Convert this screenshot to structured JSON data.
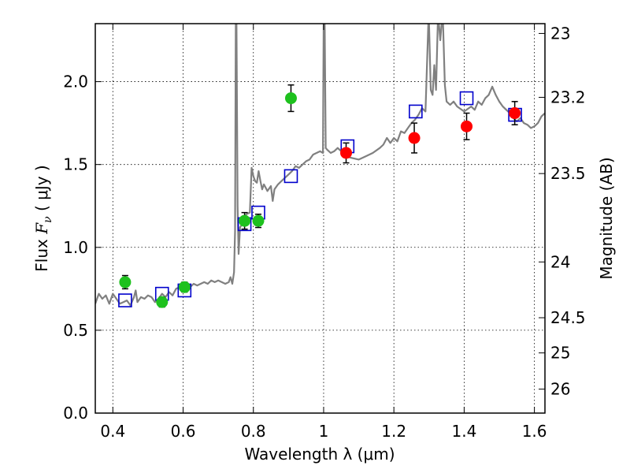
{
  "chart_data": {
    "type": "scatter",
    "xlabel": "Wavelength  λ (μm)",
    "ylabel": "Flux  F_ν  ( μJy )",
    "ylabel_parts": {
      "pre": "Flux  ",
      "sym": "F",
      "sub": "ν",
      "post": "  ( μJy )"
    },
    "y2label": "Magnitude (AB)",
    "xlim": [
      0.35,
      1.63
    ],
    "ylim": [
      0.0,
      2.35
    ],
    "grid": true,
    "x_ticks": [
      0.4,
      0.6,
      0.8,
      1.0,
      1.2,
      1.4,
      1.6
    ],
    "x_tick_labels": [
      "0.4",
      "0.6",
      "0.8",
      "1",
      "1.2",
      "1.4",
      "1.6"
    ],
    "y_ticks": [
      0.0,
      0.5,
      1.0,
      1.5,
      2.0
    ],
    "y_tick_labels": [
      "0.0",
      "0.5",
      "1.0",
      "1.5",
      "2.0"
    ],
    "y2_ticks": [
      23,
      23.2,
      23.5,
      24,
      24.5,
      25,
      26
    ],
    "y2_tick_labels": [
      "23",
      "23.2",
      "23.5",
      "24",
      "24.5",
      "25",
      "26"
    ],
    "colors": {
      "model": "#808080",
      "green_points": "#1ec11e",
      "red_points": "#ff0000",
      "model_photometry": "#0000cc",
      "errorbar": "#000000"
    },
    "series": [
      {
        "name": "model spectrum",
        "kind": "line",
        "points": [
          [
            0.35,
            0.66
          ],
          [
            0.36,
            0.72
          ],
          [
            0.37,
            0.69
          ],
          [
            0.38,
            0.71
          ],
          [
            0.39,
            0.66
          ],
          [
            0.4,
            0.72
          ],
          [
            0.41,
            0.69
          ],
          [
            0.42,
            0.66
          ],
          [
            0.43,
            0.67
          ],
          [
            0.44,
            0.68
          ],
          [
            0.45,
            0.65
          ],
          [
            0.46,
            0.7
          ],
          [
            0.465,
            0.74
          ],
          [
            0.47,
            0.67
          ],
          [
            0.48,
            0.7
          ],
          [
            0.49,
            0.69
          ],
          [
            0.5,
            0.71
          ],
          [
            0.51,
            0.7
          ],
          [
            0.52,
            0.67
          ],
          [
            0.53,
            0.69
          ],
          [
            0.54,
            0.72
          ],
          [
            0.55,
            0.7
          ],
          [
            0.56,
            0.73
          ],
          [
            0.57,
            0.71
          ],
          [
            0.58,
            0.75
          ],
          [
            0.59,
            0.76
          ],
          [
            0.6,
            0.75
          ],
          [
            0.61,
            0.77
          ],
          [
            0.62,
            0.76
          ],
          [
            0.63,
            0.78
          ],
          [
            0.64,
            0.77
          ],
          [
            0.65,
            0.78
          ],
          [
            0.66,
            0.79
          ],
          [
            0.67,
            0.78
          ],
          [
            0.68,
            0.8
          ],
          [
            0.69,
            0.79
          ],
          [
            0.7,
            0.8
          ],
          [
            0.71,
            0.79
          ],
          [
            0.72,
            0.78
          ],
          [
            0.73,
            0.79
          ],
          [
            0.735,
            0.82
          ],
          [
            0.74,
            0.78
          ],
          [
            0.745,
            0.85
          ],
          [
            0.748,
            1.1
          ],
          [
            0.75,
            2.35
          ],
          [
            0.752,
            2.35
          ],
          [
            0.755,
            1.25
          ],
          [
            0.758,
            0.96
          ],
          [
            0.762,
            1.12
          ],
          [
            0.77,
            1.15
          ],
          [
            0.78,
            1.2
          ],
          [
            0.79,
            1.21
          ],
          [
            0.795,
            1.48
          ],
          [
            0.8,
            1.43
          ],
          [
            0.805,
            1.4
          ],
          [
            0.81,
            1.39
          ],
          [
            0.815,
            1.46
          ],
          [
            0.82,
            1.4
          ],
          [
            0.825,
            1.35
          ],
          [
            0.83,
            1.38
          ],
          [
            0.84,
            1.34
          ],
          [
            0.85,
            1.37
          ],
          [
            0.855,
            1.28
          ],
          [
            0.86,
            1.35
          ],
          [
            0.87,
            1.38
          ],
          [
            0.88,
            1.4
          ],
          [
            0.89,
            1.42
          ],
          [
            0.9,
            1.44
          ],
          [
            0.91,
            1.46
          ],
          [
            0.92,
            1.49
          ],
          [
            0.93,
            1.48
          ],
          [
            0.94,
            1.5
          ],
          [
            0.95,
            1.52
          ],
          [
            0.96,
            1.53
          ],
          [
            0.97,
            1.56
          ],
          [
            0.98,
            1.57
          ],
          [
            0.99,
            1.58
          ],
          [
            0.998,
            1.57
          ],
          [
            1.0,
            2.35
          ],
          [
            1.003,
            2.35
          ],
          [
            1.006,
            1.6
          ],
          [
            1.01,
            1.59
          ],
          [
            1.02,
            1.57
          ],
          [
            1.03,
            1.58
          ],
          [
            1.04,
            1.6
          ],
          [
            1.05,
            1.58
          ],
          [
            1.06,
            1.55
          ],
          [
            1.08,
            1.54
          ],
          [
            1.1,
            1.53
          ],
          [
            1.12,
            1.55
          ],
          [
            1.14,
            1.57
          ],
          [
            1.16,
            1.6
          ],
          [
            1.17,
            1.62
          ],
          [
            1.18,
            1.66
          ],
          [
            1.19,
            1.63
          ],
          [
            1.2,
            1.66
          ],
          [
            1.21,
            1.64
          ],
          [
            1.22,
            1.7
          ],
          [
            1.23,
            1.69
          ],
          [
            1.24,
            1.72
          ],
          [
            1.25,
            1.75
          ],
          [
            1.26,
            1.77
          ],
          [
            1.27,
            1.8
          ],
          [
            1.28,
            1.84
          ],
          [
            1.29,
            1.82
          ],
          [
            1.298,
            2.35
          ],
          [
            1.3,
            2.35
          ],
          [
            1.305,
            1.95
          ],
          [
            1.31,
            1.92
          ],
          [
            1.315,
            2.1
          ],
          [
            1.32,
            1.95
          ],
          [
            1.325,
            2.35
          ],
          [
            1.328,
            2.35
          ],
          [
            1.332,
            2.25
          ],
          [
            1.336,
            2.35
          ],
          [
            1.34,
            2.35
          ],
          [
            1.345,
            1.98
          ],
          [
            1.35,
            1.88
          ],
          [
            1.36,
            1.86
          ],
          [
            1.37,
            1.88
          ],
          [
            1.38,
            1.85
          ],
          [
            1.4,
            1.82
          ],
          [
            1.42,
            1.85
          ],
          [
            1.43,
            1.83
          ],
          [
            1.44,
            1.88
          ],
          [
            1.45,
            1.86
          ],
          [
            1.46,
            1.9
          ],
          [
            1.47,
            1.92
          ],
          [
            1.48,
            1.97
          ],
          [
            1.49,
            1.92
          ],
          [
            1.5,
            1.88
          ],
          [
            1.51,
            1.85
          ],
          [
            1.52,
            1.83
          ],
          [
            1.53,
            1.81
          ],
          [
            1.54,
            1.78
          ],
          [
            1.55,
            1.76
          ],
          [
            1.56,
            1.78
          ],
          [
            1.57,
            1.75
          ],
          [
            1.58,
            1.74
          ],
          [
            1.59,
            1.72
          ],
          [
            1.6,
            1.73
          ],
          [
            1.61,
            1.75
          ],
          [
            1.62,
            1.79
          ],
          [
            1.63,
            1.81
          ]
        ]
      },
      {
        "name": "observed (green)",
        "kind": "points",
        "marker": "circle",
        "points": [
          {
            "x": 0.435,
            "y": 0.79,
            "err": 0.04
          },
          {
            "x": 0.54,
            "y": 0.67,
            "err": 0.03
          },
          {
            "x": 0.604,
            "y": 0.76,
            "err": 0.03
          },
          {
            "x": 0.775,
            "y": 1.16,
            "err": 0.05
          },
          {
            "x": 0.814,
            "y": 1.16,
            "err": 0.04
          },
          {
            "x": 0.907,
            "y": 1.9,
            "err": 0.08
          }
        ]
      },
      {
        "name": "observed (red)",
        "kind": "points",
        "marker": "circle",
        "points": [
          {
            "x": 1.064,
            "y": 1.57,
            "err": 0.06
          },
          {
            "x": 1.258,
            "y": 1.66,
            "err": 0.09
          },
          {
            "x": 1.407,
            "y": 1.73,
            "err": 0.08
          },
          {
            "x": 1.544,
            "y": 1.81,
            "err": 0.07
          }
        ]
      },
      {
        "name": "model photometry",
        "kind": "points",
        "marker": "square",
        "points": [
          {
            "x": 0.435,
            "y": 0.68
          },
          {
            "x": 0.54,
            "y": 0.72
          },
          {
            "x": 0.604,
            "y": 0.74
          },
          {
            "x": 0.775,
            "y": 1.14
          },
          {
            "x": 0.814,
            "y": 1.21
          },
          {
            "x": 0.907,
            "y": 1.43
          },
          {
            "x": 1.068,
            "y": 1.61
          },
          {
            "x": 1.262,
            "y": 1.82
          },
          {
            "x": 1.407,
            "y": 1.9
          },
          {
            "x": 1.545,
            "y": 1.8
          }
        ]
      }
    ]
  }
}
